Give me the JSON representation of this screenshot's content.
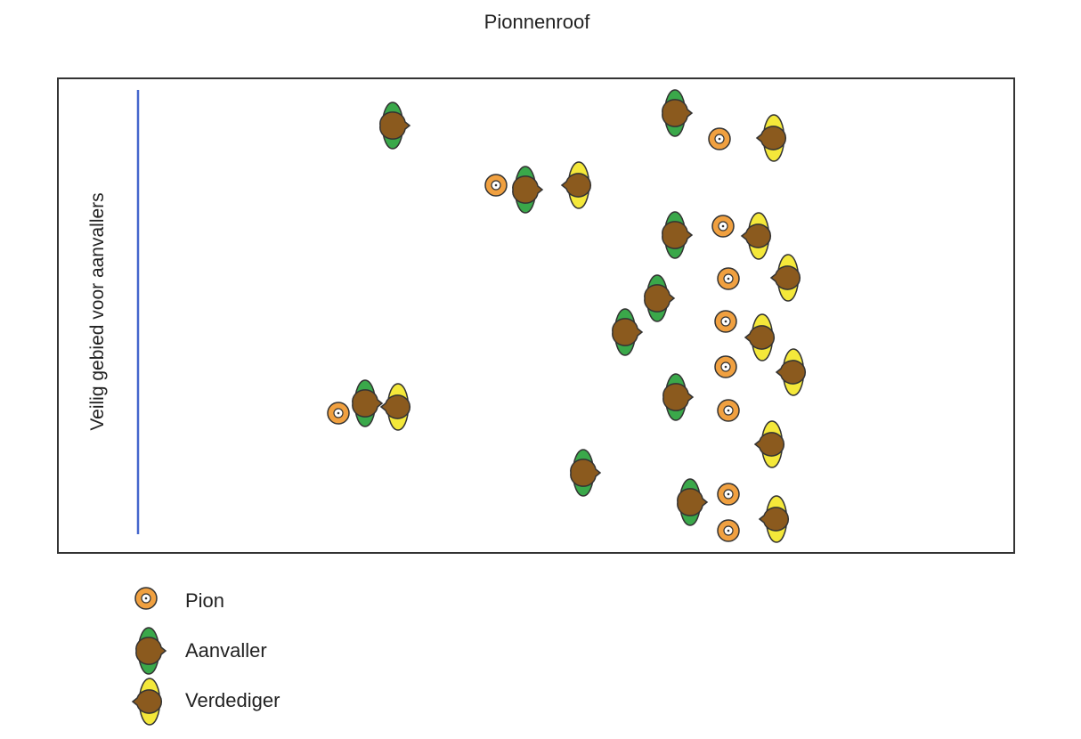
{
  "title": "Pionnenroof",
  "safe_zone_label": "Veilig gebied voor aanvallers",
  "legend": {
    "pion": "Pion",
    "aanvaller": "Aanvaller",
    "verdediger": "Verdediger"
  },
  "colors": {
    "pion": "#f0a040",
    "aanvaller_body": "#3aa84a",
    "verdediger_body": "#f4e83a",
    "head": "#8b5a1e",
    "safe_line": "#4466cc"
  }
}
